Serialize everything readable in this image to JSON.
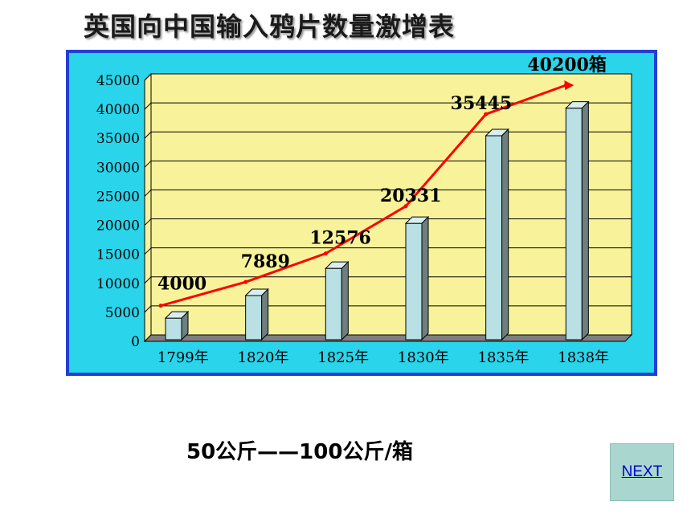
{
  "title": "英国向中国输入鸦片数量激增表",
  "note": "50公斤——100公斤/箱",
  "next_label": "NEXT",
  "chart_data": {
    "type": "bar",
    "categories": [
      "1799年",
      "1820年",
      "1825年",
      "1830年",
      "1835年",
      "1838年"
    ],
    "values": [
      4000,
      7889,
      12576,
      20331,
      35445,
      40200
    ],
    "data_labels": [
      "4000",
      "7889",
      "12576",
      "20331",
      "35445",
      "40200箱"
    ],
    "yticks": [
      "0",
      "5000",
      "10000",
      "15000",
      "20000",
      "25000",
      "30000",
      "35000",
      "40000",
      "45000"
    ],
    "ylim": [
      0,
      45000
    ],
    "trend_line": true,
    "colors": {
      "frame": "#2ad4ea",
      "border": "#1f3fd6",
      "plot": "#f8f39a",
      "bar": "#b9e0e4",
      "trend": "#ff0000"
    }
  }
}
